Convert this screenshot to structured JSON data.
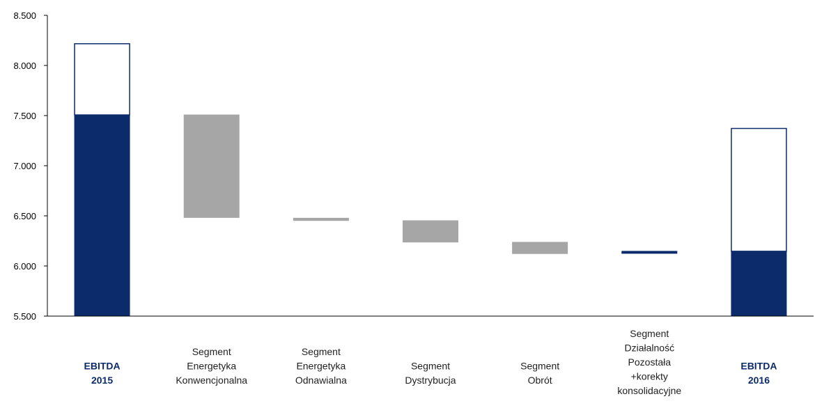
{
  "chart_data": {
    "type": "bar",
    "subtype": "waterfall",
    "title": "",
    "xlabel": "",
    "ylabel": "",
    "ylim": [
      5500,
      8500
    ],
    "yticks": [
      "5.500",
      "6.000",
      "6.500",
      "7.000",
      "7.500",
      "8.000",
      "8.500"
    ],
    "ytick_values": [
      5500,
      6000,
      6500,
      7000,
      7500,
      8000,
      8500
    ],
    "grid": false,
    "legend": "none",
    "categories": [
      {
        "lines": [
          "EBITDA",
          "2015"
        ],
        "bold": true
      },
      {
        "lines": [
          "Segment",
          "Energetyka",
          "Konwencjonalna"
        ],
        "bold": false
      },
      {
        "lines": [
          "Segment",
          "Energetyka",
          "Odnawialna"
        ],
        "bold": false
      },
      {
        "lines": [
          "Segment",
          "Dystrybucja"
        ],
        "bold": false
      },
      {
        "lines": [
          "Segment",
          "Obrót"
        ],
        "bold": false
      },
      {
        "lines": [
          "Segment",
          "Działalność",
          "Pozostała",
          "+korekty",
          "konsolidacyjne"
        ],
        "bold": false
      },
      {
        "lines": [
          "EBITDA",
          "2016"
        ],
        "bold": true
      }
    ],
    "bars": [
      {
        "kind": "total",
        "filled_bottom": 5500,
        "filled_top": 7510,
        "outline_top": 8220
      },
      {
        "kind": "delta",
        "bottom": 6480,
        "top": 7510,
        "color": "#a6a6a6"
      },
      {
        "kind": "delta",
        "bottom": 6450,
        "top": 6480,
        "color": "#a6a6a6"
      },
      {
        "kind": "delta",
        "bottom": 6235,
        "top": 6455,
        "color": "#a6a6a6"
      },
      {
        "kind": "delta",
        "bottom": 6120,
        "top": 6240,
        "color": "#a6a6a6"
      },
      {
        "kind": "delta",
        "bottom": 6125,
        "top": 6150,
        "color": "#0b2b6b"
      },
      {
        "kind": "total",
        "filled_bottom": 5500,
        "filled_top": 6150,
        "outline_top": 7375
      }
    ],
    "colors": {
      "navy": "#0b2b6b",
      "gray": "#a6a6a6",
      "axis": "#000000"
    }
  }
}
